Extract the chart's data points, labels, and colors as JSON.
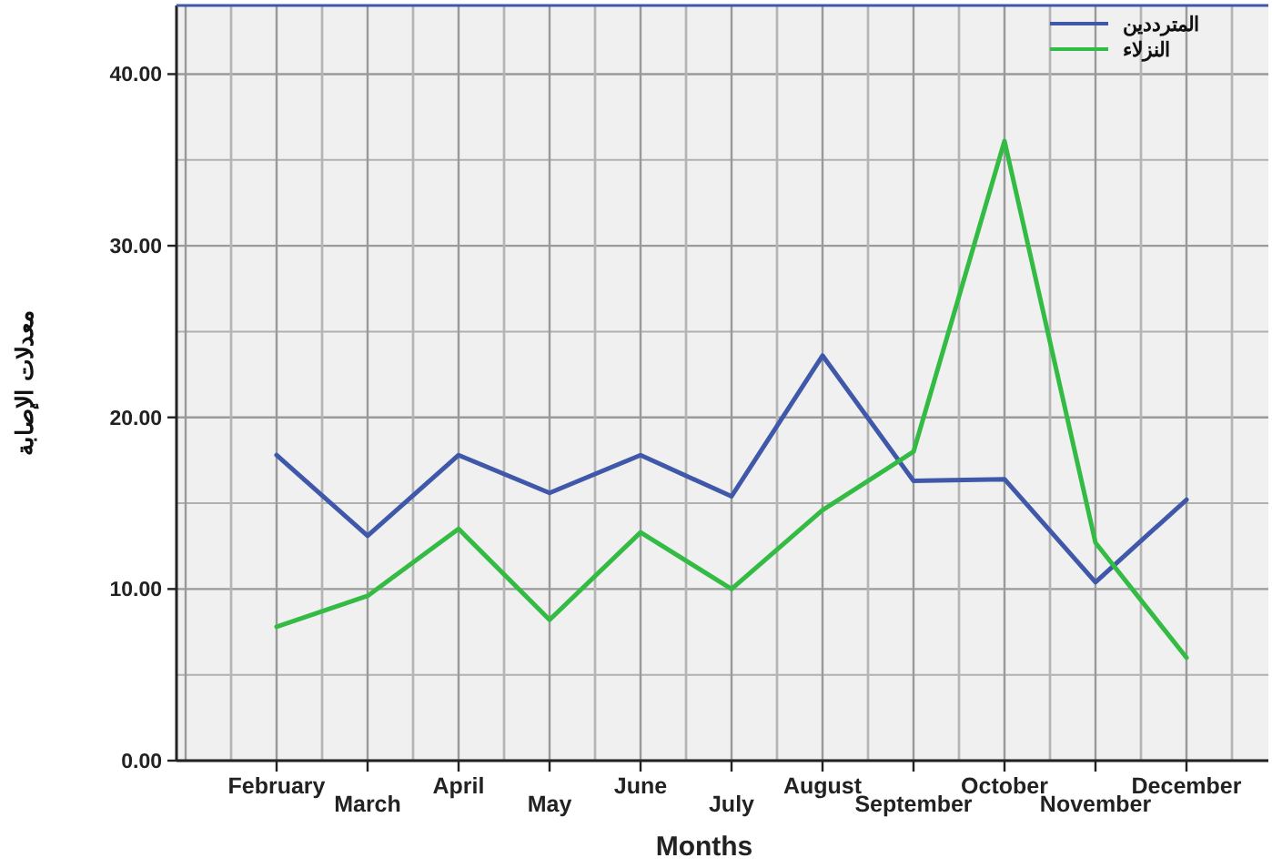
{
  "chart_data": {
    "type": "line",
    "xlabel": "Months",
    "ylabel": "معدلات الإصابة",
    "categories": [
      "February",
      "March",
      "April",
      "May",
      "June",
      "July",
      "August",
      "September",
      "October",
      "November",
      "December"
    ],
    "series": [
      {
        "name": "المترددين",
        "color": "#3f58aa",
        "values": [
          17.8,
          13.1,
          17.8,
          15.6,
          17.8,
          15.4,
          23.6,
          16.3,
          16.4,
          10.4,
          15.2
        ]
      },
      {
        "name": "النزلاء",
        "color": "#33bb44",
        "values": [
          7.8,
          9.6,
          13.5,
          8.2,
          13.3,
          10.0,
          14.6,
          18.0,
          36.1,
          12.7,
          6.0
        ]
      }
    ],
    "ylim": [
      0,
      44
    ],
    "yticks": [
      {
        "value": 0,
        "label": "0.00"
      },
      {
        "value": 10,
        "label": "10.00"
      },
      {
        "value": 20,
        "label": "20.00"
      },
      {
        "value": 30,
        "label": "30.00"
      },
      {
        "value": 40,
        "label": "40.00"
      }
    ],
    "grid": true,
    "legend": "top right",
    "marker": "none",
    "line_style": "solid"
  }
}
